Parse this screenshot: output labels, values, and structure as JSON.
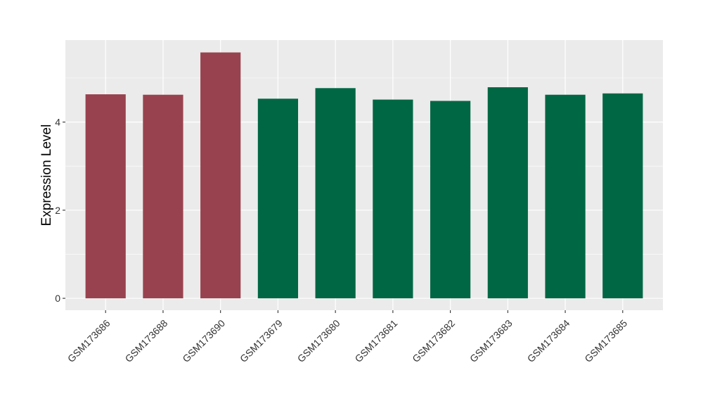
{
  "chart_data": {
    "type": "bar",
    "title": "",
    "xlabel": "",
    "ylabel": "Expression Level",
    "categories": [
      "GSM173686",
      "GSM173688",
      "GSM173690",
      "GSM173679",
      "GSM173680",
      "GSM173681",
      "GSM173682",
      "GSM173683",
      "GSM173684",
      "GSM173685"
    ],
    "values": [
      4.63,
      4.62,
      5.58,
      4.53,
      4.77,
      4.51,
      4.48,
      4.79,
      4.62,
      4.65
    ],
    "groups": [
      "group1",
      "group1",
      "group1",
      "group2",
      "group2",
      "group2",
      "group2",
      "group2",
      "group2",
      "group2"
    ],
    "group_colors": {
      "group1": "#99424F",
      "group2": "#006744"
    },
    "ylim": [
      -0.27,
      5.86
    ],
    "yticks": [
      0,
      2,
      4
    ],
    "grid": true,
    "legend": "none",
    "panel_background": "#EBEBEB",
    "gridline_color": "#FFFFFF"
  }
}
